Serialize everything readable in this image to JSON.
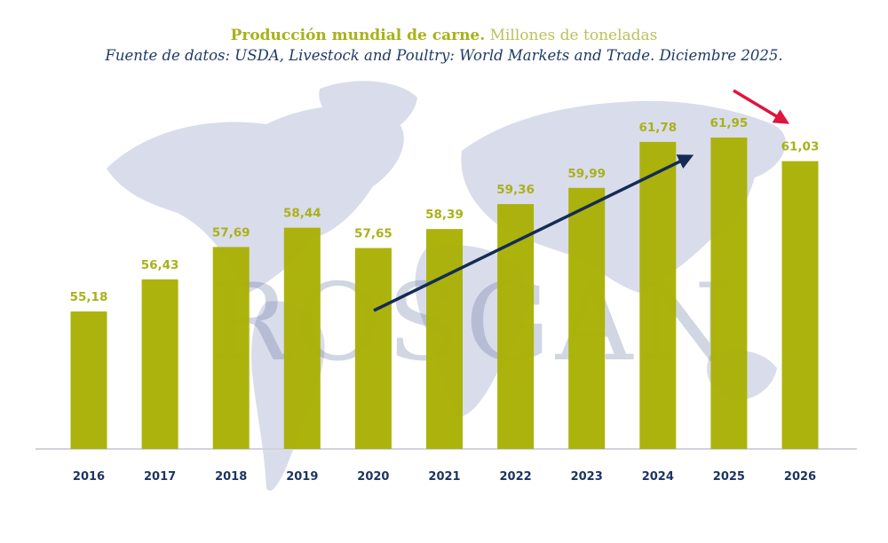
{
  "header": {
    "title_bold": "Producción mundial de carne.",
    "title_light": "Millones de toneladas",
    "subtitle": "Fuente de datos: USDA, Livestock and Poultry: World Markets and Trade. Diciembre 2025."
  },
  "watermark": "ROSGAN",
  "colors": {
    "bar": "#a9b105",
    "value_label": "#a9b11a",
    "year_label": "#1d3461",
    "trend_arrow": "#142b55",
    "decline_arrow": "#e0143c",
    "map": "#d9dcea",
    "axis": "#d0d2e0"
  },
  "chart_data": {
    "type": "bar",
    "title": "Producción mundial de carne. Millones de toneladas",
    "subtitle": "Fuente de datos: USDA, Livestock and Poultry: World Markets and Trade. Diciembre 2025.",
    "categories": [
      "2016",
      "2017",
      "2018",
      "2019",
      "2020",
      "2021",
      "2022",
      "2023",
      "2024",
      "2025",
      "2026"
    ],
    "values": [
      55.18,
      56.43,
      57.69,
      58.44,
      57.65,
      58.39,
      59.36,
      59.99,
      61.78,
      61.95,
      61.03
    ],
    "value_labels": [
      "55,18",
      "56,43",
      "57,69",
      "58,44",
      "57,65",
      "58,39",
      "59,36",
      "59,99",
      "61,78",
      "61,95",
      "61,03"
    ],
    "xlabel": "",
    "ylabel": "",
    "ylim": [
      49.83,
      63
    ],
    "grid": false,
    "legend": "none",
    "annotations": [
      {
        "type": "arrow",
        "meaning": "upward trend",
        "from_category": "2020",
        "to_category": "2024",
        "color": "#142b55"
      },
      {
        "type": "arrow",
        "meaning": "decline",
        "near_category": "2026",
        "color": "#e0143c"
      }
    ]
  }
}
